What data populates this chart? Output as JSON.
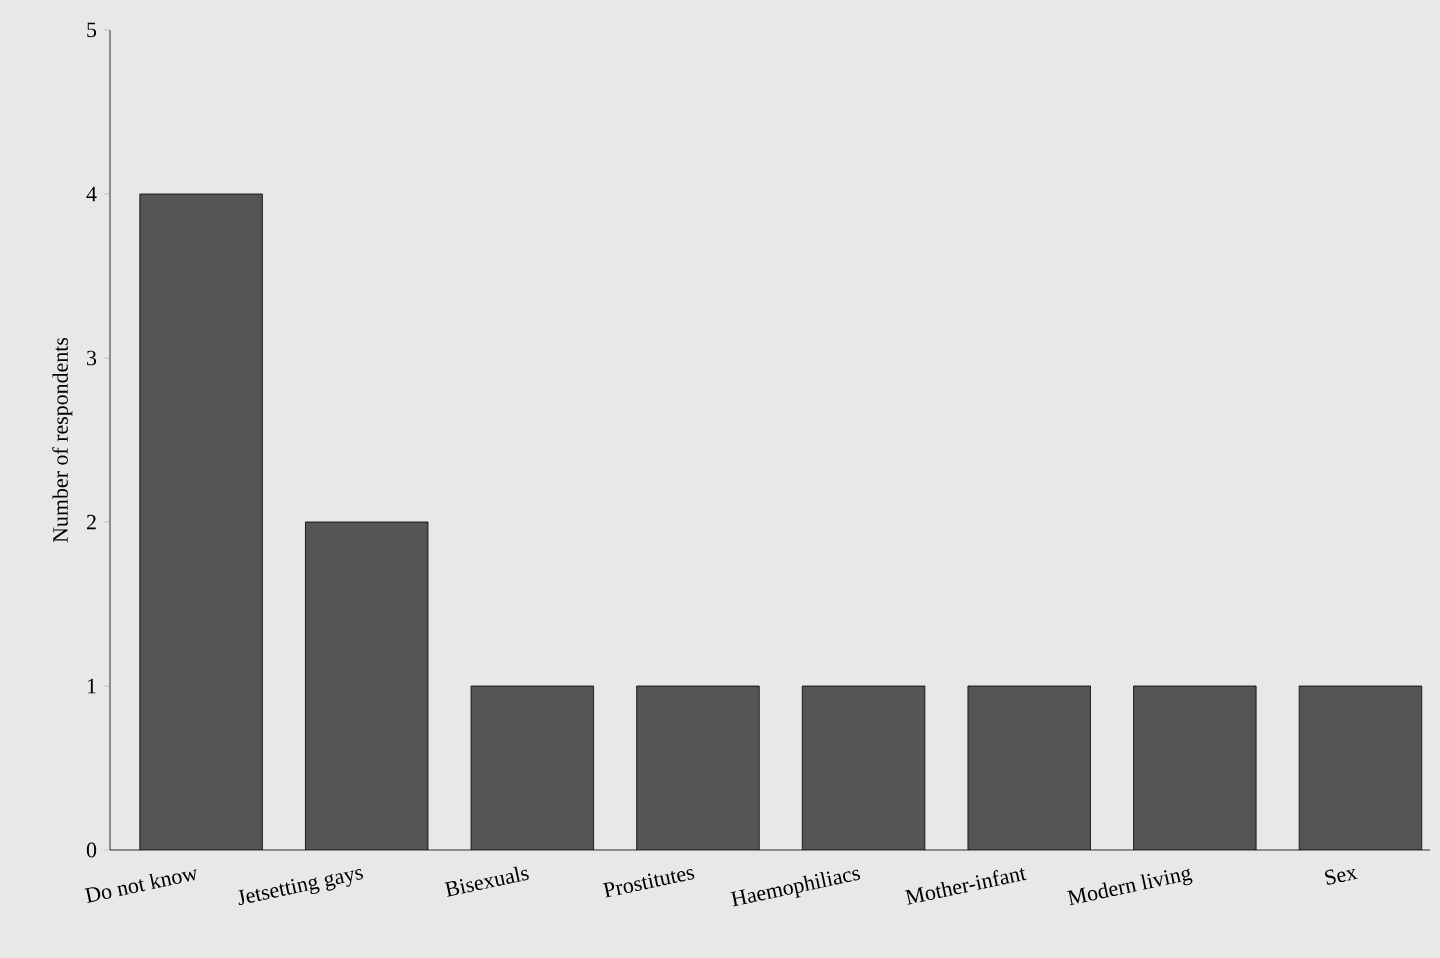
{
  "chart_data": {
    "type": "bar",
    "ylabel": "Number of respondents",
    "categories": [
      "Do not know",
      "Jetsetting gays",
      "Bisexuals",
      "Prostitutes",
      "Haemophiliacs",
      "Mother-infant",
      "Modern living",
      "Sex"
    ],
    "values": [
      4,
      2,
      1,
      1,
      1,
      1,
      1,
      1
    ],
    "color": "#555555",
    "ylim": [
      0,
      5
    ],
    "yticks": [
      0,
      1,
      2,
      3,
      4,
      5
    ]
  }
}
